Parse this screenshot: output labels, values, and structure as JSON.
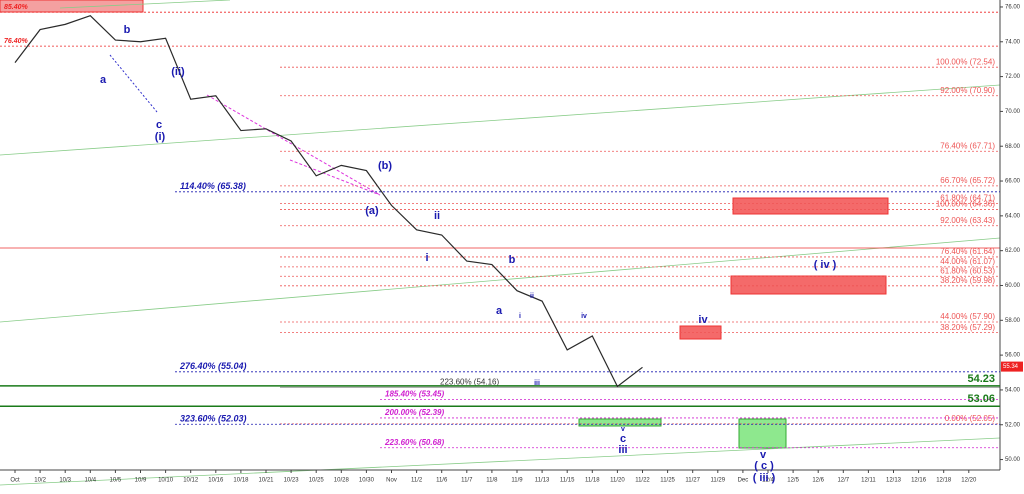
{
  "chart_data": {
    "type": "line",
    "categories": [
      "Oct",
      "10/2",
      "10/3",
      "10/4",
      "10/5",
      "10/9",
      "10/10",
      "10/12",
      "10/16",
      "10/18",
      "10/21",
      "10/23",
      "10/25",
      "10/28",
      "10/30",
      "Nov",
      "11/2",
      "11/6",
      "11/7",
      "11/8",
      "11/9",
      "11/13",
      "11/15",
      "11/18",
      "11/20",
      "11/22",
      "11/25",
      "11/27",
      "11/29",
      "Dec",
      "12/4",
      "12/5",
      "12/6",
      "12/7",
      "12/11",
      "12/13",
      "12/16",
      "12/18",
      "12/20"
    ],
    "series": [
      {
        "color": "#2a2a2a",
        "values": [
          72.8,
          74.7,
          75.0,
          75.5,
          74.1,
          74.0,
          74.2,
          70.7,
          70.9,
          68.9,
          69.0,
          68.3,
          66.3,
          66.9,
          66.6,
          64.6,
          63.2,
          62.9,
          61.4,
          61.2,
          59.7,
          59.1,
          56.3,
          57.1,
          54.2,
          55.3,
          null,
          null,
          null,
          null,
          null,
          null,
          null,
          null,
          null,
          null,
          null,
          null,
          null
        ]
      }
    ],
    "ylim": [
      49.4,
      76.4
    ],
    "yticks": [
      {
        "value": 50,
        "label": "50.00"
      },
      {
        "value": 52,
        "label": "52.00"
      },
      {
        "value": 54,
        "label": "54.00"
      },
      {
        "value": 56,
        "label": "56.00"
      },
      {
        "value": 58,
        "label": "58.00"
      },
      {
        "value": 60,
        "label": "60.00"
      },
      {
        "value": 62,
        "label": "62.00"
      },
      {
        "value": 64,
        "label": "64.00"
      },
      {
        "value": 66,
        "label": "66.00"
      },
      {
        "value": 68,
        "label": "68.00"
      },
      {
        "value": 70,
        "label": "70.00"
      },
      {
        "value": 72,
        "label": "72.00"
      },
      {
        "value": 74,
        "label": "74.00"
      },
      {
        "value": 76,
        "label": "76.00"
      }
    ],
    "last_price": {
      "value": 55.34,
      "label": "55.34"
    },
    "top_levels": [
      {
        "label": "85.40%",
        "value": 75.7
      },
      {
        "label": "76.40%",
        "value": 73.75
      }
    ],
    "right_levels": [
      {
        "label": "100.00% (72.54)",
        "value": 72.54
      },
      {
        "label": "92.00% (70.90)",
        "value": 70.9
      },
      {
        "label": "76.40% (67.71)",
        "value": 67.71
      },
      {
        "label": "66.70% (65.72)",
        "value": 65.72
      },
      {
        "label": "61.80% (64.71)",
        "value": 64.71
      },
      {
        "label": "100.00% (64.36)",
        "value": 64.36
      },
      {
        "label": "92.00% (63.43)",
        "value": 63.43
      },
      {
        "label": "76.40% (61.64)",
        "value": 61.64
      },
      {
        "label": "44.00% (61.07)",
        "value": 61.07
      },
      {
        "label": "61.80% (60.53)",
        "value": 60.53
      },
      {
        "label": "38.20% (59.98)",
        "value": 59.98
      },
      {
        "label": "44.00% (57.90)",
        "value": 57.9
      },
      {
        "label": "38.20% (57.29)",
        "value": 57.29
      },
      {
        "label": "0.00% (52.05)",
        "value": 52.05
      }
    ],
    "blue_levels": [
      {
        "label": "114.40% (65.38)",
        "value": 65.38
      },
      {
        "label": "276.40% (55.04)",
        "value": 55.04
      },
      {
        "label": "323.60% (52.03)",
        "value": 52.03
      }
    ],
    "magenta_levels": [
      {
        "label": "185.40% (53.45)",
        "value": 53.45
      },
      {
        "label": "200.00% (52.39)",
        "value": 52.39
      },
      {
        "label": "223.60% (50.68)",
        "value": 50.68
      }
    ],
    "black_levels": [
      {
        "label": "223.60% (54.16)",
        "value": 54.16
      }
    ],
    "green_levels": [
      {
        "label": "54.23",
        "value": 54.23
      },
      {
        "label": "53.06",
        "value": 53.06
      }
    ],
    "annotations": [
      "a",
      "b",
      "(ii)",
      "c",
      "(i)",
      "(b)",
      "(a)",
      "ii",
      "i",
      "b",
      "a",
      "i",
      "ii",
      "iv",
      "iii",
      "iv",
      "( iv )",
      "v",
      "c",
      "iii",
      "v",
      "( c )",
      "( iii )"
    ]
  }
}
